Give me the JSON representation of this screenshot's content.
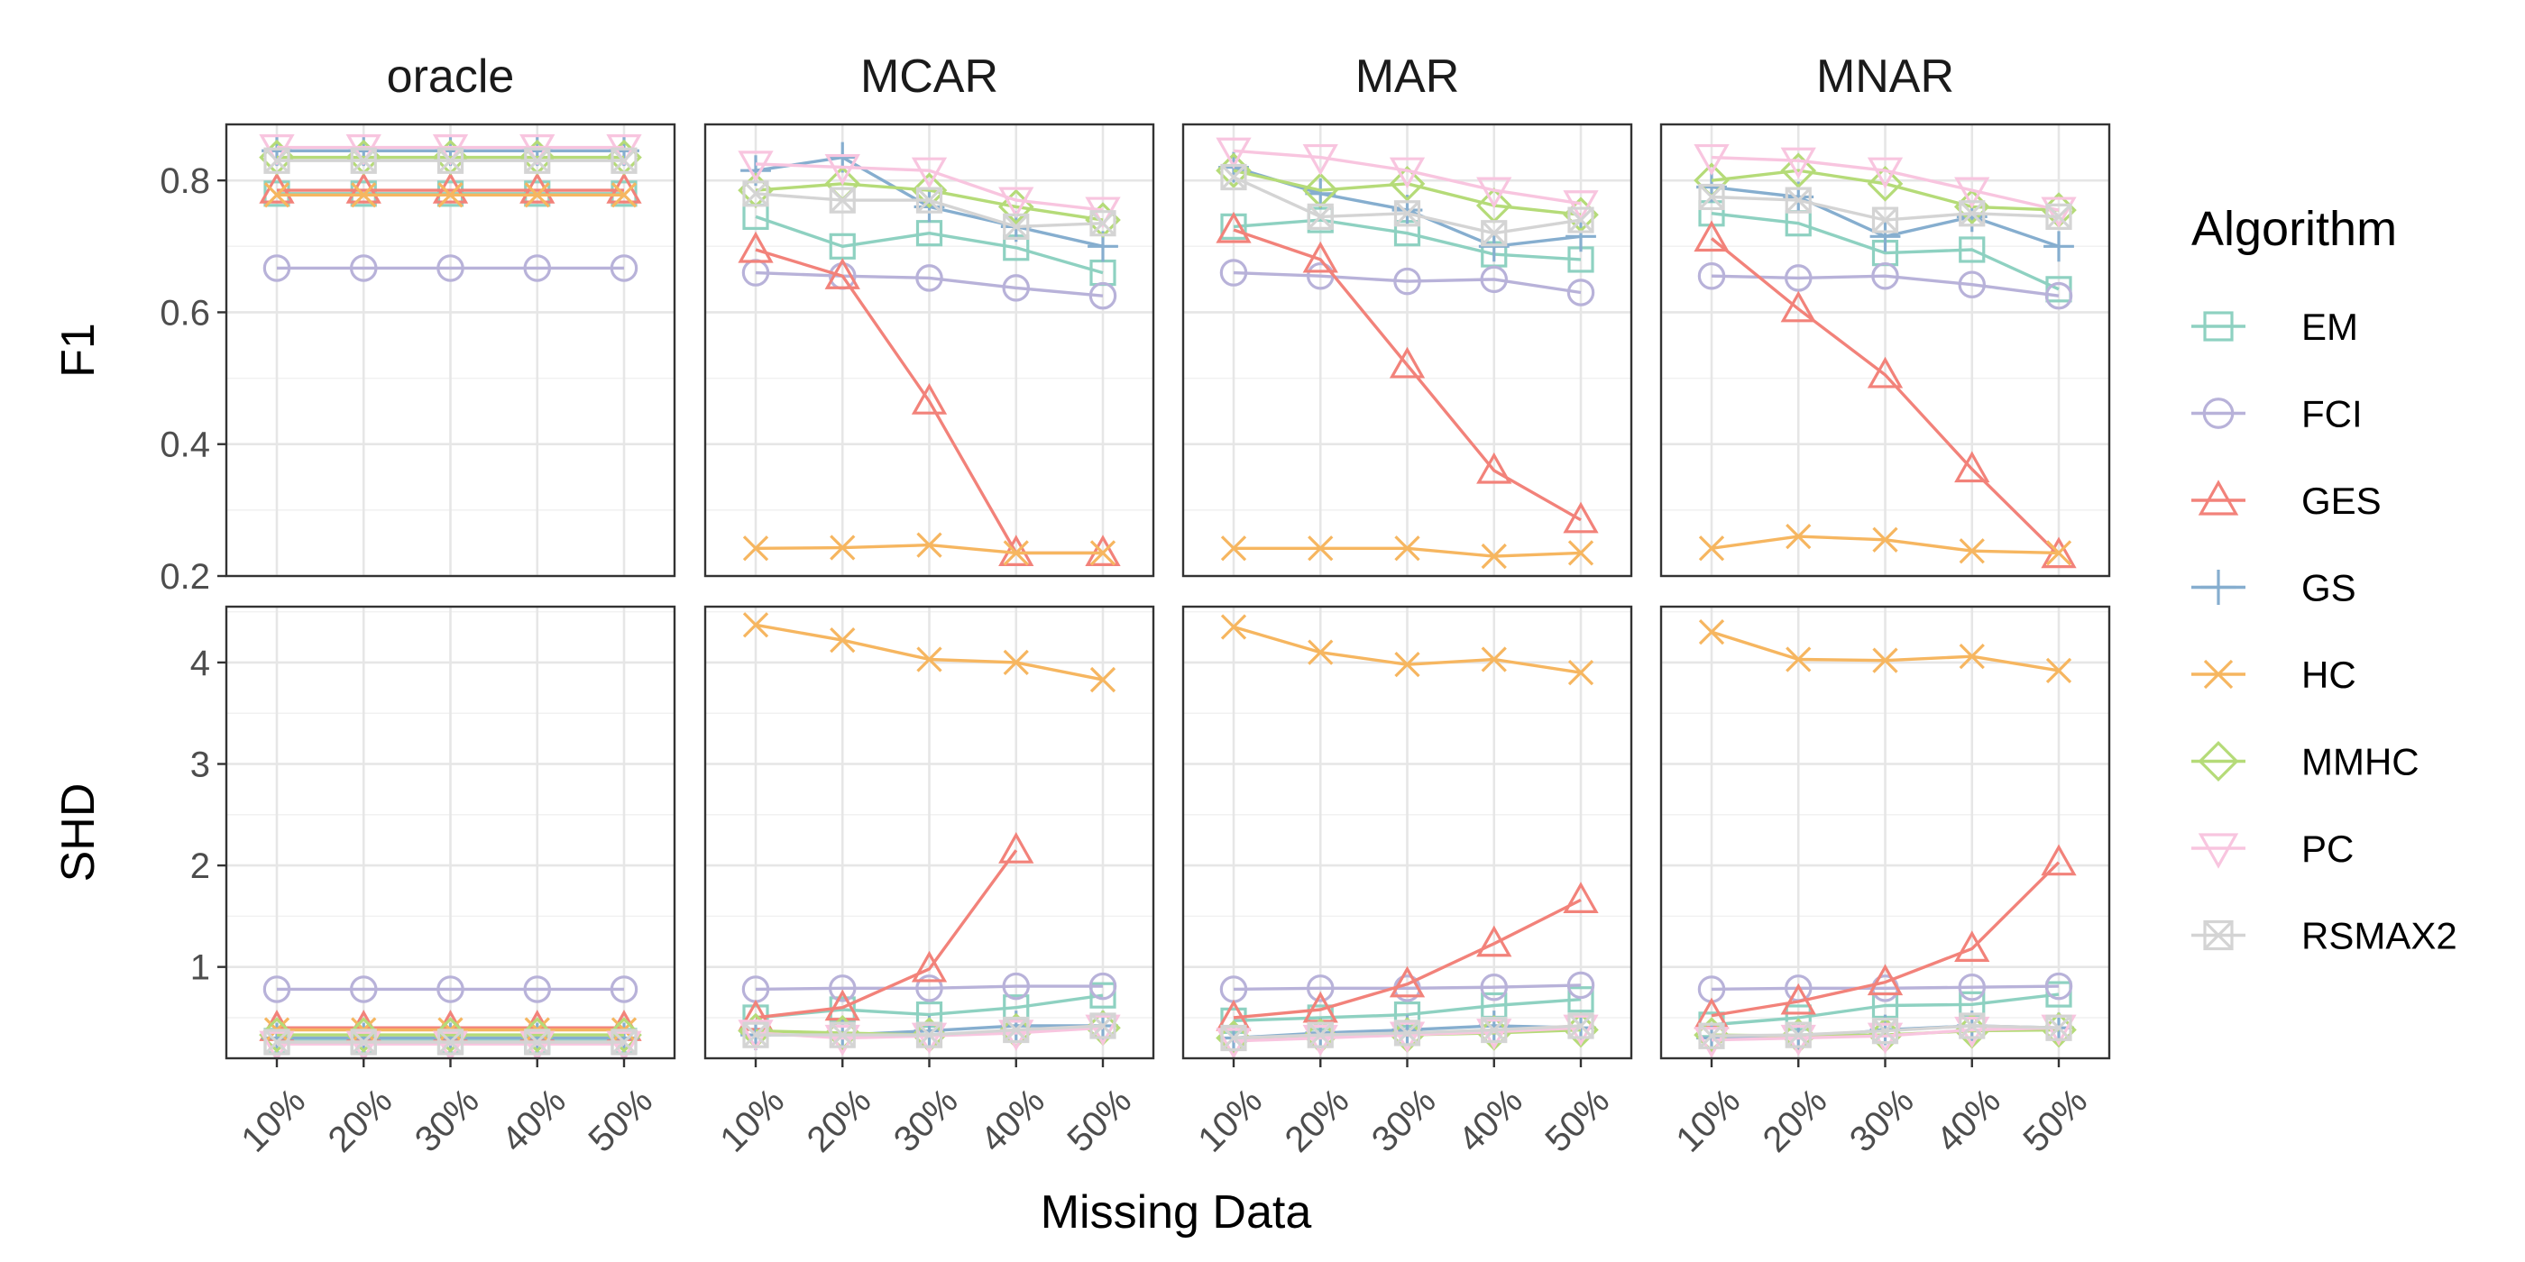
{
  "chart_data": {
    "type": "line",
    "x_categories": [
      "10%",
      "20%",
      "30%",
      "40%",
      "50%"
    ],
    "xlabel": "Missing Data",
    "columns": [
      "oracle",
      "MCAR",
      "MAR",
      "MNAR"
    ],
    "rows": [
      {
        "metric": "F1",
        "ylim": [
          0.2,
          0.885
        ],
        "yticks": [
          0.2,
          0.4,
          0.6,
          0.8
        ]
      },
      {
        "metric": "SHD",
        "ylim": [
          0.1,
          4.55
        ],
        "yticks": [
          1,
          2,
          3,
          4
        ]
      }
    ],
    "legend": {
      "title": "Algorithm",
      "position": "right",
      "entries": [
        {
          "name": "EM",
          "color": "#8ED1C1",
          "shape": "square"
        },
        {
          "name": "FCI",
          "color": "#B8B2D9",
          "shape": "circle"
        },
        {
          "name": "GES",
          "color": "#F2827A",
          "shape": "triangle"
        },
        {
          "name": "GS",
          "color": "#86AECF",
          "shape": "plus"
        },
        {
          "name": "HC",
          "color": "#F6B660",
          "shape": "cross"
        },
        {
          "name": "MMHC",
          "color": "#B5DB78",
          "shape": "diamond"
        },
        {
          "name": "PC",
          "color": "#F8C5DF",
          "shape": "triangle-down"
        },
        {
          "name": "RSMAX2",
          "color": "#D4D4D4",
          "shape": "square-cross"
        }
      ]
    },
    "series": {
      "F1": {
        "oracle": {
          "EM": [
            0.78,
            0.78,
            0.78,
            0.78,
            0.78
          ],
          "FCI": [
            0.667,
            0.667,
            0.667,
            0.667,
            0.667
          ],
          "GES": [
            0.785,
            0.785,
            0.785,
            0.785,
            0.785
          ],
          "GS": [
            0.845,
            0.845,
            0.845,
            0.845,
            0.845
          ],
          "HC": [
            0.778,
            0.778,
            0.778,
            0.778,
            0.778
          ],
          "MMHC": [
            0.835,
            0.835,
            0.835,
            0.835,
            0.835
          ],
          "PC": [
            0.85,
            0.85,
            0.85,
            0.85,
            0.85
          ],
          "RSMAX2": [
            0.83,
            0.83,
            0.83,
            0.83,
            0.83
          ]
        },
        "MCAR": {
          "EM": [
            0.745,
            0.7,
            0.72,
            0.698,
            0.66
          ],
          "FCI": [
            0.66,
            0.655,
            0.652,
            0.637,
            0.625
          ],
          "GES": [
            0.695,
            0.655,
            0.465,
            0.235,
            0.235
          ],
          "GS": [
            0.815,
            0.835,
            0.76,
            0.73,
            0.7
          ],
          "HC": [
            0.242,
            0.243,
            0.247,
            0.235,
            0.235
          ],
          "MMHC": [
            0.785,
            0.795,
            0.785,
            0.76,
            0.74
          ],
          "PC": [
            0.825,
            0.82,
            0.815,
            0.77,
            0.755
          ],
          "RSMAX2": [
            0.78,
            0.77,
            0.77,
            0.73,
            0.735
          ]
        },
        "MAR": {
          "EM": [
            0.73,
            0.74,
            0.72,
            0.688,
            0.68
          ],
          "FCI": [
            0.66,
            0.655,
            0.647,
            0.65,
            0.63
          ],
          "GES": [
            0.725,
            0.68,
            0.52,
            0.36,
            0.285
          ],
          "GS": [
            0.82,
            0.78,
            0.755,
            0.7,
            0.715
          ],
          "HC": [
            0.242,
            0.242,
            0.242,
            0.23,
            0.235
          ],
          "MMHC": [
            0.815,
            0.785,
            0.795,
            0.762,
            0.748
          ],
          "PC": [
            0.845,
            0.835,
            0.815,
            0.785,
            0.765
          ],
          "RSMAX2": [
            0.805,
            0.745,
            0.75,
            0.72,
            0.74
          ]
        },
        "MNAR": {
          "EM": [
            0.75,
            0.735,
            0.69,
            0.695,
            0.635
          ],
          "FCI": [
            0.655,
            0.652,
            0.655,
            0.642,
            0.625
          ],
          "GES": [
            0.712,
            0.605,
            0.505,
            0.362,
            0.232
          ],
          "GS": [
            0.79,
            0.775,
            0.715,
            0.745,
            0.7
          ],
          "HC": [
            0.242,
            0.26,
            0.255,
            0.238,
            0.235
          ],
          "MMHC": [
            0.8,
            0.815,
            0.795,
            0.76,
            0.755
          ],
          "PC": [
            0.835,
            0.83,
            0.815,
            0.785,
            0.755
          ],
          "RSMAX2": [
            0.775,
            0.77,
            0.74,
            0.75,
            0.745
          ]
        }
      },
      "SHD": {
        "oracle": {
          "EM": [
            0.27,
            0.27,
            0.27,
            0.27,
            0.27
          ],
          "FCI": [
            0.78,
            0.78,
            0.78,
            0.78,
            0.78
          ],
          "GES": [
            0.4,
            0.4,
            0.4,
            0.4,
            0.4
          ],
          "GS": [
            0.3,
            0.3,
            0.3,
            0.3,
            0.3
          ],
          "HC": [
            0.38,
            0.38,
            0.38,
            0.38,
            0.38
          ],
          "MMHC": [
            0.33,
            0.33,
            0.33,
            0.33,
            0.33
          ],
          "PC": [
            0.24,
            0.24,
            0.24,
            0.24,
            0.24
          ],
          "RSMAX2": [
            0.26,
            0.26,
            0.26,
            0.26,
            0.26
          ]
        },
        "MCAR": {
          "EM": [
            0.5,
            0.58,
            0.53,
            0.6,
            0.72
          ],
          "FCI": [
            0.78,
            0.79,
            0.79,
            0.81,
            0.81
          ],
          "GES": [
            0.5,
            0.6,
            0.98,
            2.15,
            null
          ],
          "GS": [
            0.33,
            0.33,
            0.37,
            0.42,
            0.42
          ],
          "HC": [
            4.37,
            4.22,
            4.03,
            4.0,
            3.83
          ],
          "MMHC": [
            0.37,
            0.35,
            0.33,
            0.37,
            0.4
          ],
          "PC": [
            0.35,
            0.3,
            0.32,
            0.35,
            0.4
          ],
          "RSMAX2": [
            0.33,
            0.33,
            0.33,
            0.38,
            0.42
          ]
        },
        "MAR": {
          "EM": [
            0.47,
            0.5,
            0.53,
            0.62,
            0.68
          ],
          "FCI": [
            0.78,
            0.79,
            0.79,
            0.8,
            0.82
          ],
          "GES": [
            0.5,
            0.58,
            0.83,
            1.23,
            1.66
          ],
          "GS": [
            0.3,
            0.35,
            0.38,
            0.42,
            0.4
          ],
          "HC": [
            4.35,
            4.1,
            3.98,
            4.03,
            3.9
          ],
          "MMHC": [
            0.3,
            0.32,
            0.33,
            0.35,
            0.38
          ],
          "PC": [
            0.27,
            0.3,
            0.33,
            0.36,
            0.4
          ],
          "RSMAX2": [
            0.3,
            0.33,
            0.35,
            0.38,
            0.42
          ]
        },
        "MNAR": {
          "EM": [
            0.43,
            0.5,
            0.62,
            0.63,
            0.73
          ],
          "FCI": [
            0.78,
            0.79,
            0.79,
            0.8,
            0.81
          ],
          "GES": [
            0.52,
            0.66,
            0.85,
            1.18,
            2.03
          ],
          "GS": [
            0.3,
            0.3,
            0.38,
            0.42,
            0.4
          ],
          "HC": [
            4.3,
            4.03,
            4.02,
            4.06,
            3.92
          ],
          "MMHC": [
            0.33,
            0.32,
            0.33,
            0.37,
            0.38
          ],
          "PC": [
            0.28,
            0.3,
            0.32,
            0.38,
            0.4
          ],
          "RSMAX2": [
            0.32,
            0.33,
            0.37,
            0.42,
            0.4
          ]
        }
      }
    }
  }
}
